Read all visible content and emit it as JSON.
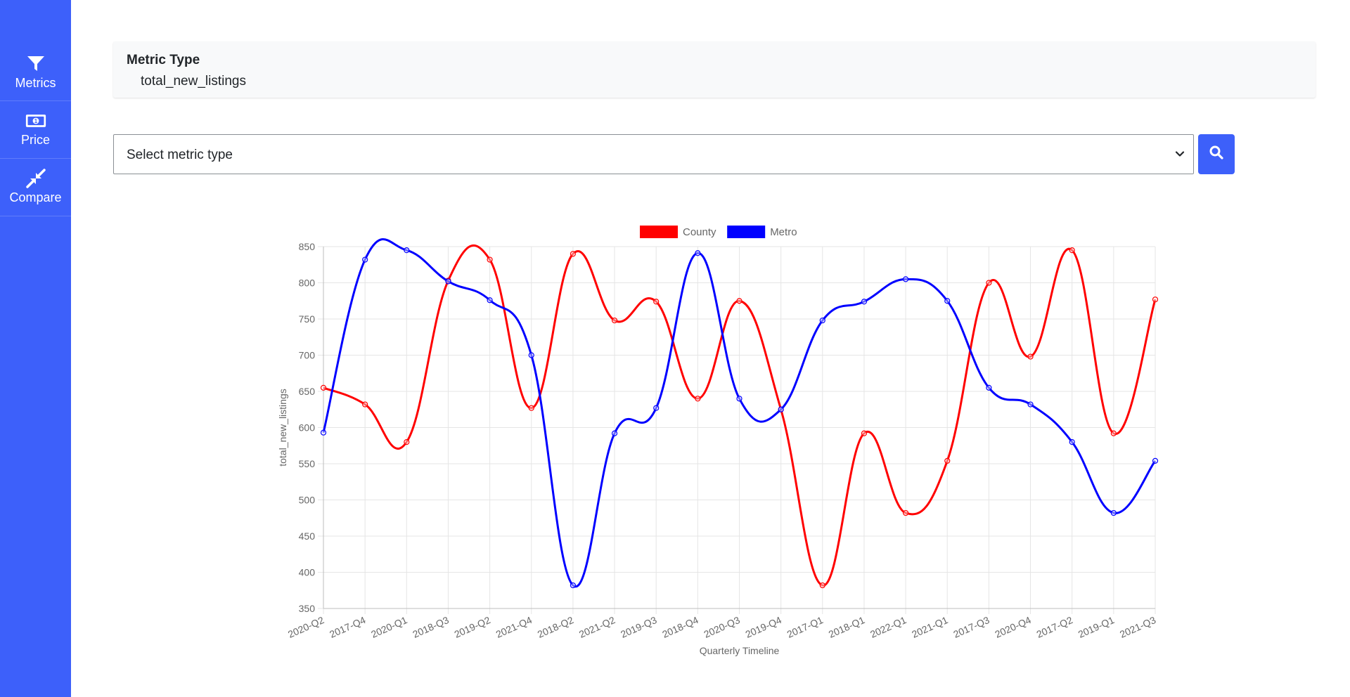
{
  "sidebar": {
    "items": [
      {
        "label": "Metrics",
        "icon": "filter-icon"
      },
      {
        "label": "Price",
        "icon": "money-bill-icon"
      },
      {
        "label": "Compare",
        "icon": "compress-arrows-icon"
      }
    ]
  },
  "metric_card": {
    "title": "Metric Type",
    "value": "total_new_listings"
  },
  "metric_select": {
    "selected": "Select metric type"
  },
  "search_button": {
    "icon": "search-icon"
  },
  "colors": {
    "accent": "#3d60fa",
    "county": "#ff0000",
    "metro": "#0000ff"
  },
  "chart_data": {
    "type": "line",
    "xlabel": "Quarterly Timeline",
    "ylabel": "total_new_listings",
    "ylim": [
      350,
      850
    ],
    "yticks": [
      850,
      800,
      750,
      700,
      650,
      600,
      550,
      500,
      450,
      400,
      350
    ],
    "grid": true,
    "legend_position": "top-center",
    "categories": [
      "2020-Q2",
      "2017-Q4",
      "2020-Q1",
      "2018-Q3",
      "2019-Q2",
      "2021-Q4",
      "2018-Q2",
      "2021-Q2",
      "2019-Q3",
      "2018-Q4",
      "2020-Q3",
      "2019-Q4",
      "2017-Q1",
      "2018-Q1",
      "2022-Q1",
      "2021-Q1",
      "2017-Q3",
      "2020-Q4",
      "2017-Q2",
      "2019-Q1",
      "2021-Q3"
    ],
    "series": [
      {
        "name": "County",
        "color": "#ff0000",
        "values": [
          655,
          632,
          580,
          803,
          832,
          627,
          840,
          748,
          774,
          640,
          775,
          625,
          382,
          592,
          482,
          554,
          800,
          698,
          845,
          592,
          777
        ]
      },
      {
        "name": "Metro",
        "color": "#0000ff",
        "values": [
          593,
          832,
          845,
          802,
          776,
          700,
          382,
          592,
          627,
          841,
          640,
          625,
          748,
          774,
          805,
          775,
          655,
          632,
          580,
          482,
          554
        ]
      }
    ]
  }
}
